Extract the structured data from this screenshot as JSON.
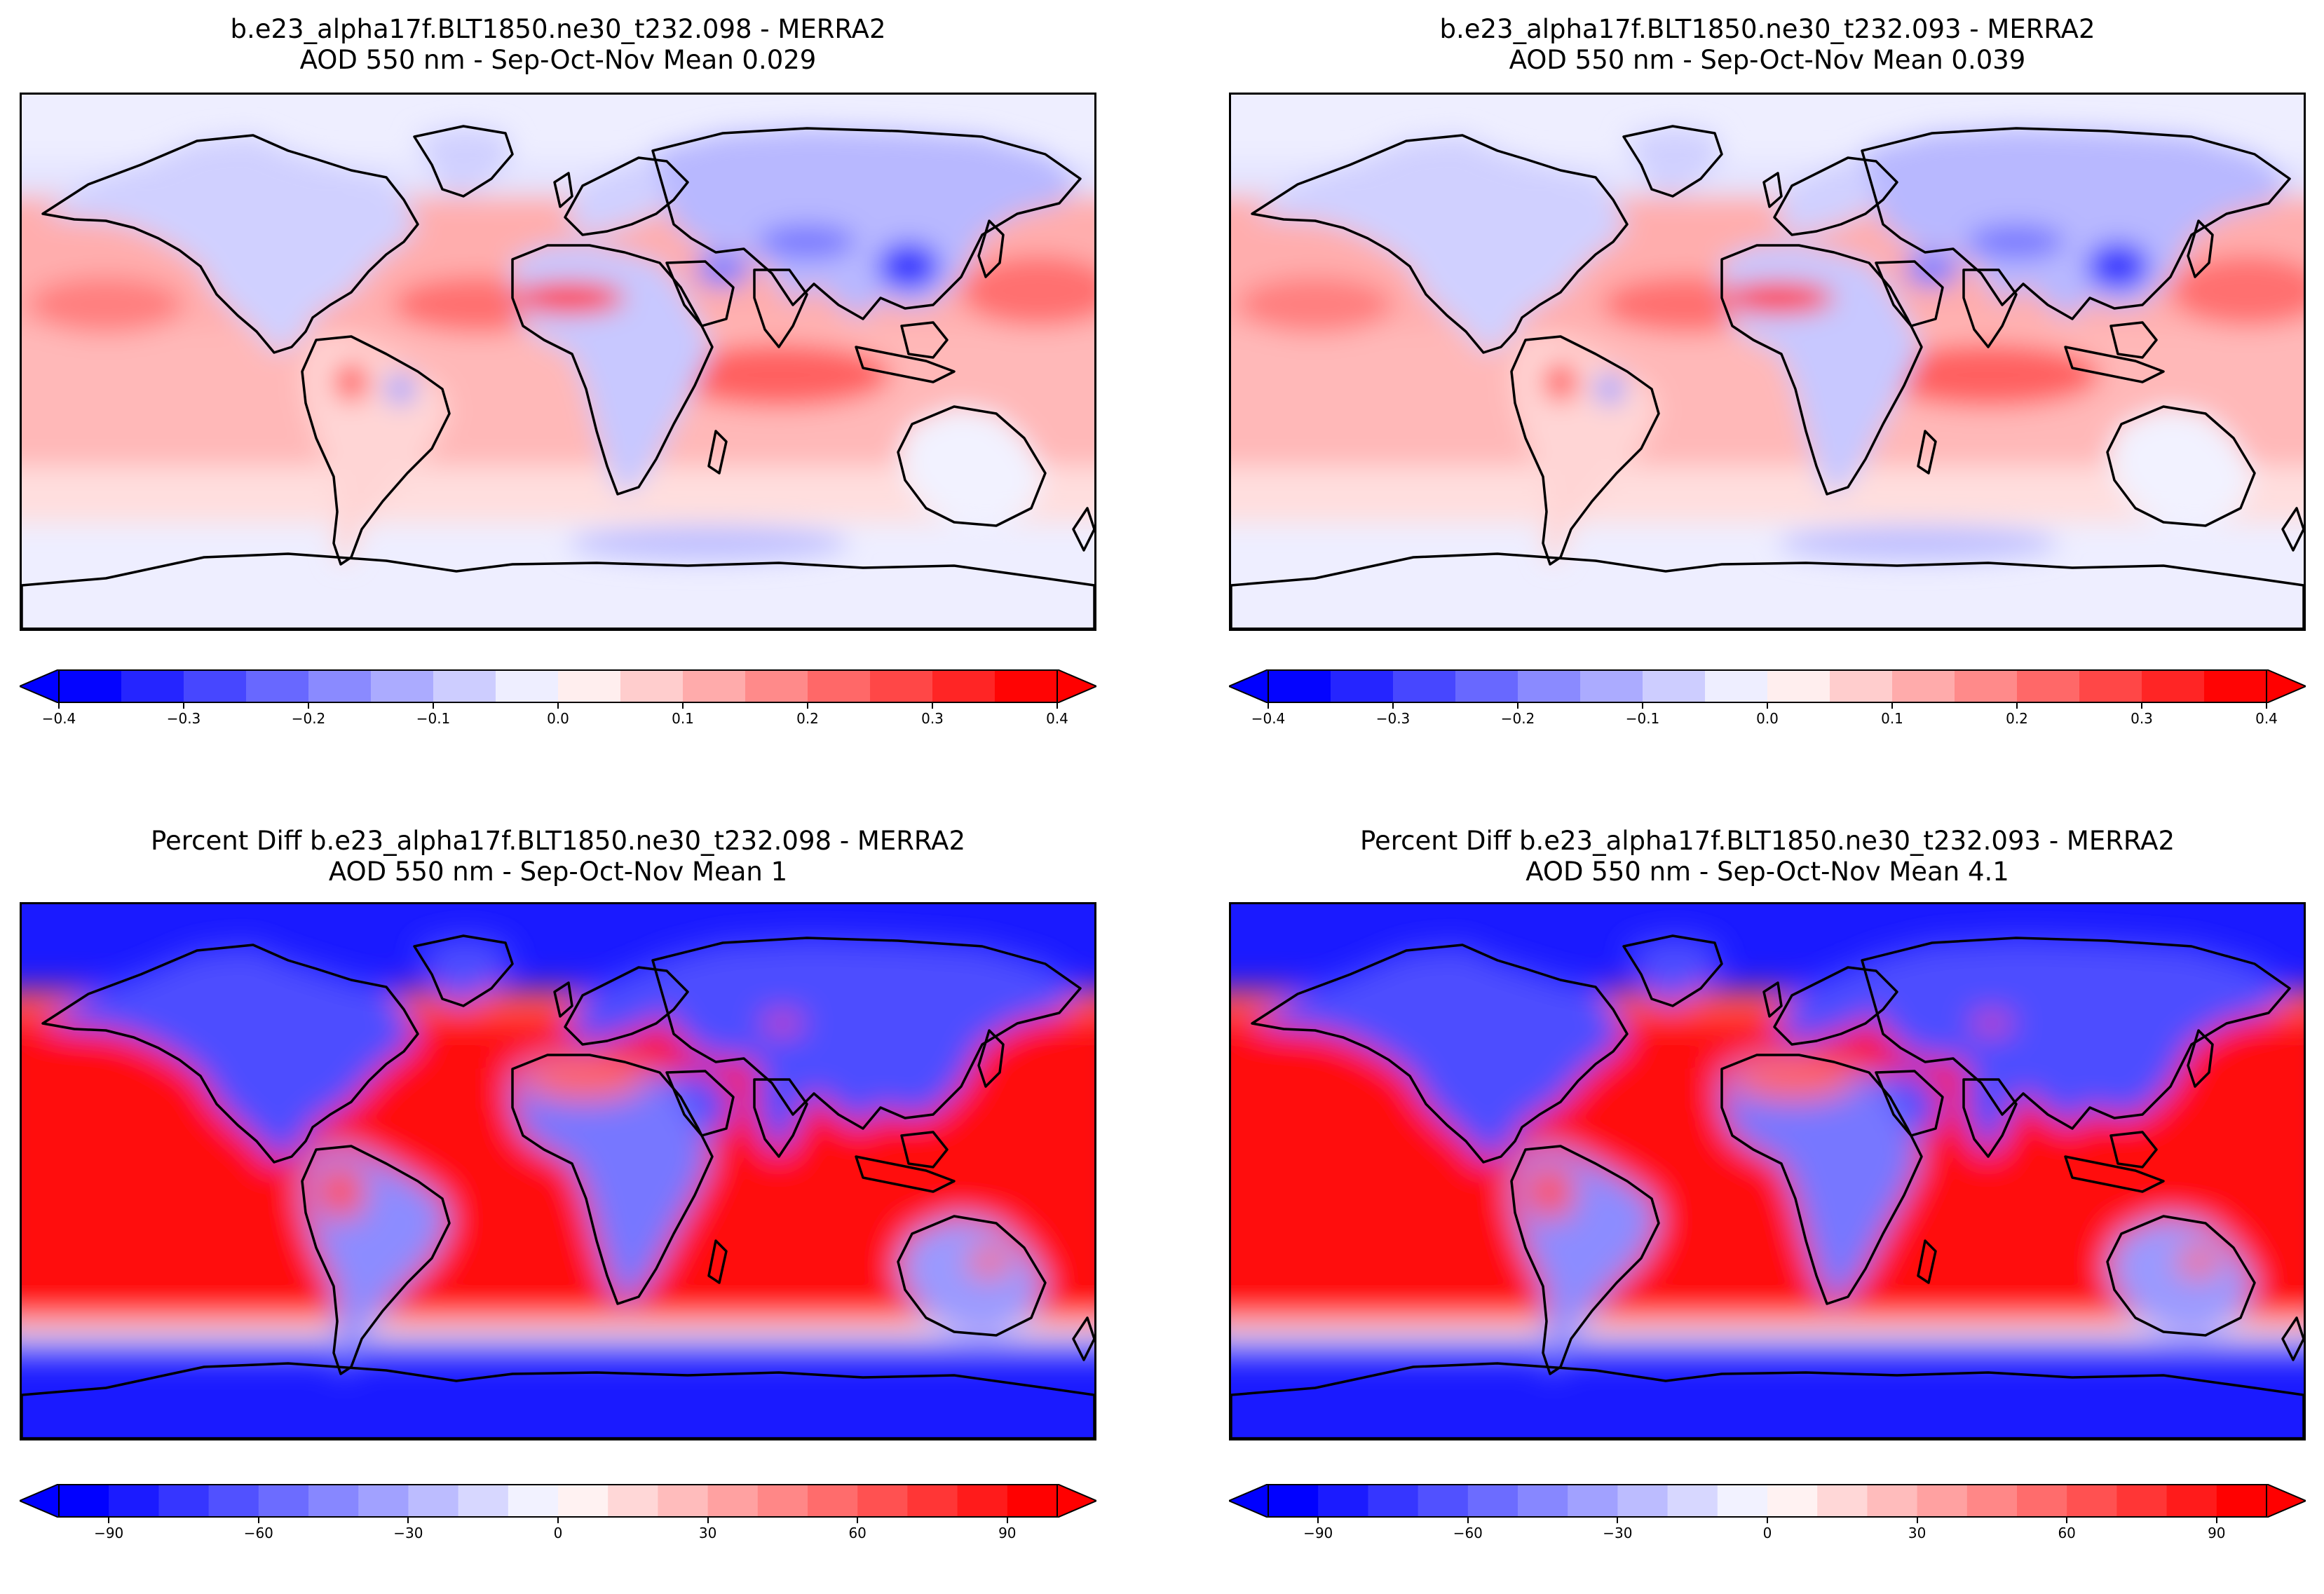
{
  "panels": [
    {
      "title_line1": "b.e23_alpha17f.BLT1850.ne30_t232.098 - MERRA2",
      "title_line2": "AOD 550 nm - Sep-Oct-Nov  Mean 0.029",
      "map_type": "difference",
      "colorbar": {
        "ticks": [
          "−0.4",
          "−0.3",
          "−0.2",
          "−0.1",
          "0.0",
          "0.1",
          "0.2",
          "0.3",
          "0.4"
        ],
        "range": [
          -0.4,
          0.4
        ]
      }
    },
    {
      "title_line1": "b.e23_alpha17f.BLT1850.ne30_t232.093 - MERRA2",
      "title_line2": "AOD 550 nm - Sep-Oct-Nov  Mean 0.039",
      "map_type": "difference",
      "colorbar": {
        "ticks": [
          "−0.4",
          "−0.3",
          "−0.2",
          "−0.1",
          "0.0",
          "0.1",
          "0.2",
          "0.3",
          "0.4"
        ],
        "range": [
          -0.4,
          0.4
        ]
      }
    },
    {
      "title_line1": "Percent Diff b.e23_alpha17f.BLT1850.ne30_t232.098 - MERRA2",
      "title_line2": "AOD 550 nm - Sep-Oct-Nov  Mean 1",
      "map_type": "percent",
      "colorbar": {
        "ticks": [
          "−90",
          "−60",
          "−30",
          "0",
          "30",
          "60",
          "90"
        ],
        "range": [
          -100,
          100
        ]
      }
    },
    {
      "title_line1": "Percent Diff b.e23_alpha17f.BLT1850.ne30_t232.093 - MERRA2",
      "title_line2": "AOD 550 nm - Sep-Oct-Nov  Mean 4.1",
      "map_type": "percent",
      "colorbar": {
        "ticks": [
          "−90",
          "−60",
          "−30",
          "0",
          "30",
          "60",
          "90"
        ],
        "range": [
          -100,
          100
        ]
      }
    }
  ],
  "colors": {
    "strong_blue": "#0000ff",
    "strong_red": "#ff0000",
    "neutral": "#ffffff"
  }
}
